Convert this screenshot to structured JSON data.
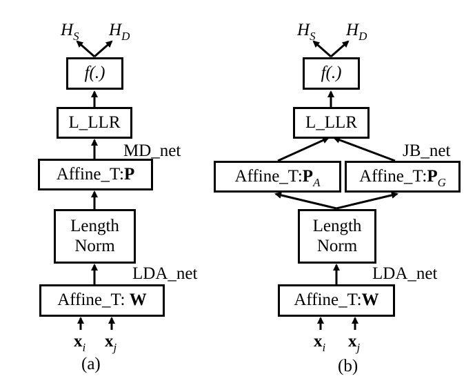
{
  "panel_a": {
    "output_left": {
      "base": "H",
      "sub": "S"
    },
    "output_right": {
      "base": "H",
      "sub": "D"
    },
    "f_box": "f(.)",
    "llr_box": "L_LLR",
    "md_label": "MD_net",
    "affine_p": {
      "prefix": "Affine_T:",
      "bold": "P"
    },
    "length_norm": {
      "line1": "Length",
      "line2": "Norm"
    },
    "lda_label": "LDA_net",
    "affine_w": {
      "prefix": "Affine_T: ",
      "bold": "W"
    },
    "input_i": {
      "base": "x",
      "sub": "i"
    },
    "input_j": {
      "base": "x",
      "sub": "j"
    },
    "caption": "(a)"
  },
  "panel_b": {
    "output_left": {
      "base": "H",
      "sub": "S"
    },
    "output_right": {
      "base": "H",
      "sub": "D"
    },
    "f_box": "f(.)",
    "llr_box": "L_LLR",
    "jb_label": "JB_net",
    "affine_pa": {
      "prefix": "Affine_T:",
      "bold": "P",
      "sub": "A"
    },
    "affine_pg": {
      "prefix": "Affine_T:",
      "bold": "P",
      "sub": "G"
    },
    "length_norm": {
      "line1": "Length",
      "line2": "Norm"
    },
    "lda_label": "LDA_net",
    "affine_w": {
      "prefix": "Affine_T:",
      "bold": "W"
    },
    "input_i": {
      "base": "x",
      "sub": "i"
    },
    "input_j": {
      "base": "x",
      "sub": "j"
    },
    "caption": "(b)"
  }
}
